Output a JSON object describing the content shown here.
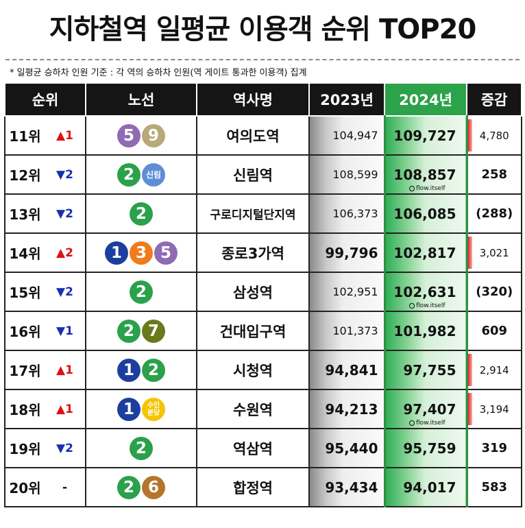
{
  "title": "지하철역 일평균 이용객 순위 TOP20",
  "note": "* 일평균 승하차 인원 기준 : 각 역의 승하차 인원(역 게이트 통과한 이용객) 집계",
  "headers": {
    "rank": "순위",
    "line": "노선",
    "station": "역사명",
    "y2023": "2023년",
    "y2024": "2024년",
    "diff": "증감"
  },
  "colors": {
    "line1": "#1c3f9e",
    "line2": "#2aa14a",
    "line3": "#ef7c1c",
    "line5": "#8e6bb3",
    "line6": "#b5752c",
    "line7": "#6a7a1b",
    "line9": "#b8a87a",
    "sillim": "#5e8ed6",
    "suinbundang": "#f5c400",
    "up": "#dd1111",
    "down": "#1a2fb0"
  },
  "rows": [
    {
      "rank": "11위",
      "chg": "▲1",
      "dir": "up",
      "lines": [
        {
          "t": "5",
          "c": "line5"
        },
        {
          "t": "9",
          "c": "line9"
        }
      ],
      "station": "여의도역",
      "y2023": "104,947",
      "y2024": "109,727",
      "diff": "4,780",
      "wm": ""
    },
    {
      "rank": "12위",
      "chg": "▼2",
      "dir": "down",
      "lines": [
        {
          "t": "2",
          "c": "line2"
        },
        {
          "t": "신림",
          "c": "sillim"
        }
      ],
      "station": "신림역",
      "y2023": "108,599",
      "y2024": "108,857",
      "diff": "258",
      "wm": "flow.itself"
    },
    {
      "rank": "13위",
      "chg": "▼2",
      "dir": "down",
      "lines": [
        {
          "t": "2",
          "c": "line2"
        }
      ],
      "station": "구로디지털단지역",
      "y2023": "106,373",
      "y2024": "106,085",
      "diff": "(288)",
      "wm": ""
    },
    {
      "rank": "14위",
      "chg": "▲2",
      "dir": "up",
      "lines": [
        {
          "t": "1",
          "c": "line1"
        },
        {
          "t": "3",
          "c": "line3"
        },
        {
          "t": "5",
          "c": "line5"
        }
      ],
      "station": "종로3가역",
      "y2023": "99,796",
      "y2024": "102,817",
      "diff": "3,021",
      "wm": ""
    },
    {
      "rank": "15위",
      "chg": "▼2",
      "dir": "down",
      "lines": [
        {
          "t": "2",
          "c": "line2"
        }
      ],
      "station": "삼성역",
      "y2023": "102,951",
      "y2024": "102,631",
      "diff": "(320)",
      "wm": "flow.itself"
    },
    {
      "rank": "16위",
      "chg": "▼1",
      "dir": "down",
      "lines": [
        {
          "t": "2",
          "c": "line2"
        },
        {
          "t": "7",
          "c": "line7"
        }
      ],
      "station": "건대입구역",
      "y2023": "101,373",
      "y2024": "101,982",
      "diff": "609",
      "wm": ""
    },
    {
      "rank": "17위",
      "chg": "▲1",
      "dir": "up",
      "lines": [
        {
          "t": "1",
          "c": "line1"
        },
        {
          "t": "2",
          "c": "line2"
        }
      ],
      "station": "시청역",
      "y2023": "94,841",
      "y2024": "97,755",
      "diff": "2,914",
      "wm": ""
    },
    {
      "rank": "18위",
      "chg": "▲1",
      "dir": "up",
      "lines": [
        {
          "t": "1",
          "c": "line1"
        },
        {
          "t": "수인\n분당",
          "c": "suinbundang"
        }
      ],
      "station": "수원역",
      "y2023": "94,213",
      "y2024": "97,407",
      "diff": "3,194",
      "wm": "flow.itself"
    },
    {
      "rank": "19위",
      "chg": "▼2",
      "dir": "down",
      "lines": [
        {
          "t": "2",
          "c": "line2"
        }
      ],
      "station": "역삼역",
      "y2023": "95,440",
      "y2024": "95,759",
      "diff": "319",
      "wm": ""
    },
    {
      "rank": "20위",
      "chg": "-",
      "dir": "same",
      "lines": [
        {
          "t": "2",
          "c": "line2"
        },
        {
          "t": "6",
          "c": "line6"
        }
      ],
      "station": "합정역",
      "y2023": "93,434",
      "y2024": "94,017",
      "diff": "583",
      "wm": ""
    }
  ]
}
